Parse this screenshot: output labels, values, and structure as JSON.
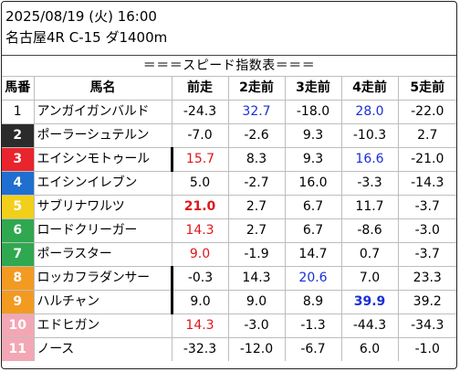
{
  "header": {
    "line1": "2025/08/19 (火) 16:00",
    "line2": "名古屋4R C-15 ダ1400m"
  },
  "banner": "＝＝＝スピード指数表＝＝＝",
  "columns": [
    "馬番",
    "馬名",
    "前走",
    "2走前",
    "3走前",
    "4走前",
    "5走前"
  ],
  "colors": {
    "red": "#e0161a",
    "blue": "#1a2fd6"
  },
  "rows": [
    {
      "num": "1",
      "name": "アンガイガンバルド",
      "bg": "#ffffff",
      "fg": "#000000",
      "mark": false,
      "v": [
        {
          "t": "-24.3"
        },
        {
          "t": "32.7",
          "c": "blue"
        },
        {
          "t": "-18.0"
        },
        {
          "t": "28.0",
          "c": "blue"
        },
        {
          "t": "-22.0"
        }
      ]
    },
    {
      "num": "2",
      "name": "ポーラーシュテルン",
      "bg": "#2b2b2b",
      "fg": "#ffffff",
      "mark": false,
      "v": [
        {
          "t": "-7.0"
        },
        {
          "t": "-2.6"
        },
        {
          "t": "9.3"
        },
        {
          "t": "-10.3"
        },
        {
          "t": "2.7"
        }
      ]
    },
    {
      "num": "3",
      "name": "エイシンモトゥール",
      "bg": "#e8242c",
      "fg": "#ffffff",
      "mark": true,
      "v": [
        {
          "t": "15.7",
          "c": "red"
        },
        {
          "t": "8.3"
        },
        {
          "t": "9.3"
        },
        {
          "t": "16.6",
          "c": "blue"
        },
        {
          "t": "-21.0"
        }
      ]
    },
    {
      "num": "4",
      "name": "エイシンイレブン",
      "bg": "#1e6fd0",
      "fg": "#ffffff",
      "mark": false,
      "v": [
        {
          "t": "5.0"
        },
        {
          "t": "-2.7"
        },
        {
          "t": "16.0"
        },
        {
          "t": "-3.3"
        },
        {
          "t": "-14.3"
        }
      ]
    },
    {
      "num": "5",
      "name": "サブリナワルツ",
      "bg": "#f2cf1a",
      "fg": "#ffffff",
      "mark": false,
      "v": [
        {
          "t": "21.0",
          "c": "red",
          "b": true
        },
        {
          "t": "2.7"
        },
        {
          "t": "6.7"
        },
        {
          "t": "11.7"
        },
        {
          "t": "-3.7"
        }
      ]
    },
    {
      "num": "6",
      "name": "ロードクリーガー",
      "bg": "#2fa84f",
      "fg": "#ffffff",
      "mark": false,
      "v": [
        {
          "t": "14.3",
          "c": "red"
        },
        {
          "t": "2.7"
        },
        {
          "t": "6.7"
        },
        {
          "t": "-8.6"
        },
        {
          "t": "-3.0"
        }
      ]
    },
    {
      "num": "7",
      "name": "ポーラスター",
      "bg": "#2fa84f",
      "fg": "#ffffff",
      "mark": false,
      "v": [
        {
          "t": "9.0",
          "c": "red"
        },
        {
          "t": "-1.9"
        },
        {
          "t": "14.7"
        },
        {
          "t": "0.7"
        },
        {
          "t": "-3.7"
        }
      ]
    },
    {
      "num": "8",
      "name": "ロッカフラダンサー",
      "bg": "#f39a21",
      "fg": "#ffffff",
      "mark": true,
      "v": [
        {
          "t": "-0.3"
        },
        {
          "t": "14.3"
        },
        {
          "t": "20.6",
          "c": "blue"
        },
        {
          "t": "7.0"
        },
        {
          "t": "23.3"
        }
      ]
    },
    {
      "num": "9",
      "name": "ハルチャン",
      "bg": "#f39a21",
      "fg": "#ffffff",
      "mark": true,
      "v": [
        {
          "t": "9.0"
        },
        {
          "t": "9.0"
        },
        {
          "t": "8.9"
        },
        {
          "t": "39.9",
          "c": "blue",
          "b": true
        },
        {
          "t": "39.2"
        }
      ]
    },
    {
      "num": "10",
      "name": "エドヒガン",
      "bg": "#f3a7b5",
      "fg": "#ffffff",
      "mark": false,
      "v": [
        {
          "t": "14.3",
          "c": "red"
        },
        {
          "t": "-3.0"
        },
        {
          "t": "-1.3"
        },
        {
          "t": "-44.3"
        },
        {
          "t": "-34.3"
        }
      ]
    },
    {
      "num": "11",
      "name": "ノース",
      "bg": "#f3a7b5",
      "fg": "#ffffff",
      "mark": false,
      "v": [
        {
          "t": "-32.3"
        },
        {
          "t": "-12.0"
        },
        {
          "t": "-6.7"
        },
        {
          "t": "6.0"
        },
        {
          "t": "-1.0"
        }
      ]
    }
  ]
}
